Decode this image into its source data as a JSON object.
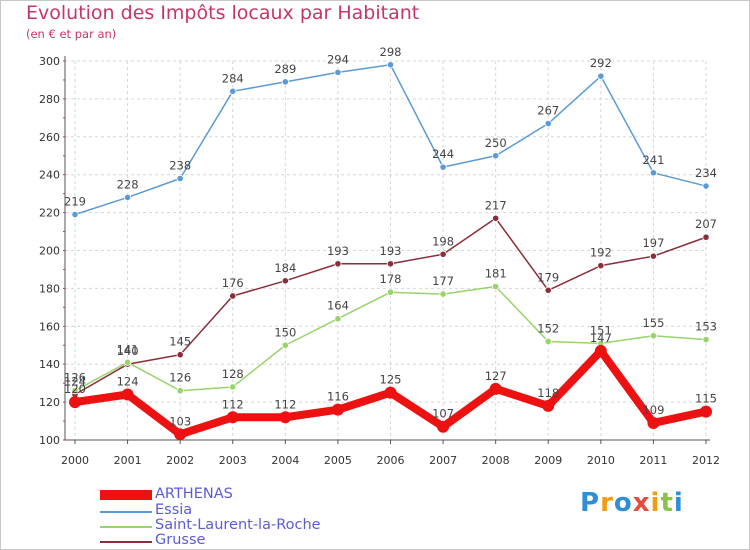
{
  "chart_data": {
    "type": "line",
    "title": "Evolution des Impôts locaux par Habitant",
    "subtitle": "(en € et par an)",
    "categories": [
      "2000",
      "2001",
      "2002",
      "2003",
      "2004",
      "2005",
      "2006",
      "2007",
      "2008",
      "2009",
      "2010",
      "2011",
      "2012"
    ],
    "ylim": [
      100,
      300
    ],
    "yticks": [
      100,
      120,
      140,
      160,
      180,
      200,
      220,
      240,
      260,
      280,
      300
    ],
    "grid": true,
    "legend_position": "bottom-left",
    "series": [
      {
        "name": "Essia",
        "color": "#5b9bd5",
        "values": [
          219,
          228,
          238,
          284,
          289,
          294,
          298,
          244,
          250,
          267,
          292,
          241,
          234
        ],
        "labels": [
          "219",
          "228",
          "238",
          "284",
          "289",
          "294",
          "298",
          "244",
          "250",
          "267",
          "292",
          "241",
          "234"
        ]
      },
      {
        "name": "Grusse",
        "color": "#8b2e3a",
        "values": [
          124,
          140,
          145,
          176,
          184,
          193,
          193,
          198,
          217,
          179,
          192,
          197,
          207
        ],
        "labels": [
          "124",
          "140",
          "145",
          "176",
          "184",
          "193",
          "193",
          "198",
          "217",
          "179",
          "192",
          "197",
          "207"
        ]
      },
      {
        "name": "Saint-Laurent-la-Roche",
        "color": "#99d36b",
        "values": [
          126,
          141,
          126,
          128,
          150,
          164,
          178,
          177,
          181,
          152,
          151,
          155,
          153
        ],
        "labels": [
          "126",
          "141",
          "126",
          "128",
          "150",
          "164",
          "178",
          "177",
          "181",
          "152",
          "151",
          "155",
          "153"
        ]
      },
      {
        "name": "ARTHENAS",
        "color": "#ee1111",
        "values": [
          120,
          124,
          103,
          112,
          112,
          116,
          125,
          107,
          127,
          118,
          147,
          109,
          115
        ],
        "labels": [
          "120",
          "124",
          "103",
          "112",
          "112",
          "116",
          "125",
          "107",
          "127",
          "118",
          "147",
          "109",
          "115"
        ]
      }
    ],
    "legend": [
      {
        "name": "ARTHENAS",
        "color": "#ee1111"
      },
      {
        "name": "Essia",
        "color": "#5b9bd5"
      },
      {
        "name": "Saint-Laurent-la-Roche",
        "color": "#99d36b"
      },
      {
        "name": "Grusse",
        "color": "#8b2e3a"
      }
    ]
  },
  "logo": {
    "letters": [
      "P",
      "r",
      "o",
      "x",
      "i",
      "t",
      "i"
    ],
    "colors": [
      "#2f8fd6",
      "#f39c12",
      "#2f8fd6",
      "#e74c3c",
      "#f39c12",
      "#8bc34a",
      "#2f8fd6"
    ]
  }
}
